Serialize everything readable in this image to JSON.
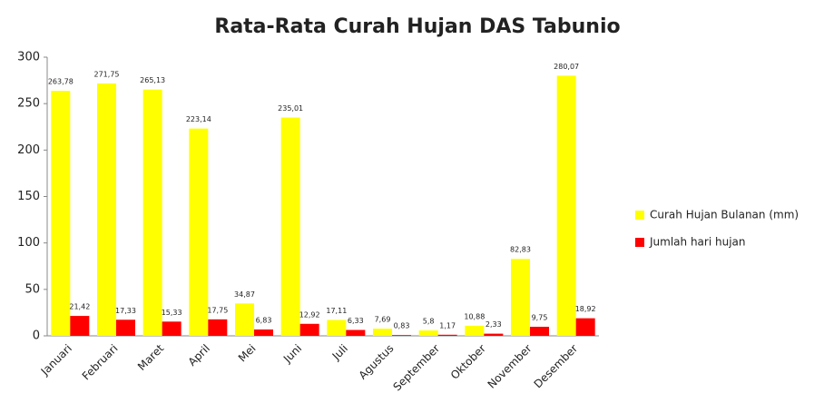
{
  "chart_data": {
    "type": "bar",
    "title": "Rata-Rata Curah Hujan DAS Tabunio",
    "categories": [
      "Januari",
      "Februari",
      "Maret",
      "April",
      "Mei",
      "Juni",
      "Juli",
      "Agustus",
      "September",
      "Oktober",
      "November",
      "Desember"
    ],
    "series": [
      {
        "name": "Curah Hujan Bulanan (mm)",
        "color": "#ffff00",
        "values": [
          263.78,
          271.75,
          265.13,
          223.14,
          34.87,
          235.01,
          17.11,
          7.69,
          5.8,
          10.88,
          82.83,
          280.07
        ],
        "value_labels": [
          "263,78",
          "271,75",
          "265,13",
          "223,14",
          "34,87",
          "235,01",
          "17,11",
          "7,69",
          "5,8",
          "10,88",
          "82,83",
          "280,07"
        ]
      },
      {
        "name": "Jumlah hari hujan",
        "color": "#ff0000",
        "values": [
          21.42,
          17.33,
          15.33,
          17.75,
          6.83,
          12.92,
          6.33,
          0.83,
          1.17,
          2.33,
          9.75,
          18.92
        ],
        "value_labels": [
          "21,42",
          "17,33",
          "15,33",
          "17,75",
          "6,83",
          "12,92",
          "6,33",
          "0,83",
          "1,17",
          "2,33",
          "9,75",
          "18,92"
        ]
      }
    ],
    "ylim": [
      0,
      300
    ],
    "yticks": [
      0,
      50,
      100,
      150,
      200,
      250,
      300
    ],
    "grid": false,
    "legend": "right"
  }
}
